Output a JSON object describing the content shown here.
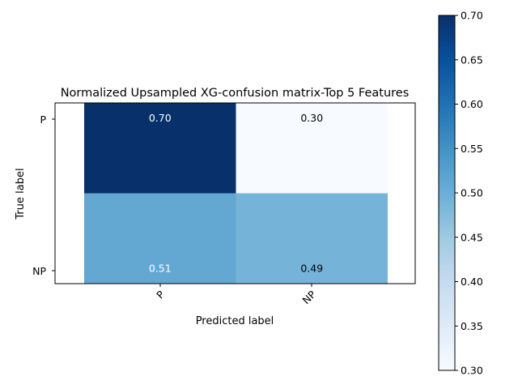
{
  "chart_data": {
    "type": "heatmap",
    "title": "Normalized Upsampled XG-confusion matrix-Top 5 Features",
    "xlabel": "Predicted label",
    "ylabel": "True label",
    "x_categories": [
      "P",
      "NP"
    ],
    "y_categories": [
      "P",
      "NP"
    ],
    "values": [
      [
        0.7,
        0.3
      ],
      [
        0.51,
        0.49
      ]
    ],
    "value_labels": [
      [
        "0.70",
        "0.30"
      ],
      [
        "0.51",
        "0.49"
      ]
    ],
    "colorbar": {
      "min": 0.3,
      "max": 0.7,
      "ticks": [
        "0.30",
        "0.35",
        "0.40",
        "0.45",
        "0.50",
        "0.55",
        "0.60",
        "0.65",
        "0.70"
      ],
      "colormap": "Blues"
    }
  }
}
